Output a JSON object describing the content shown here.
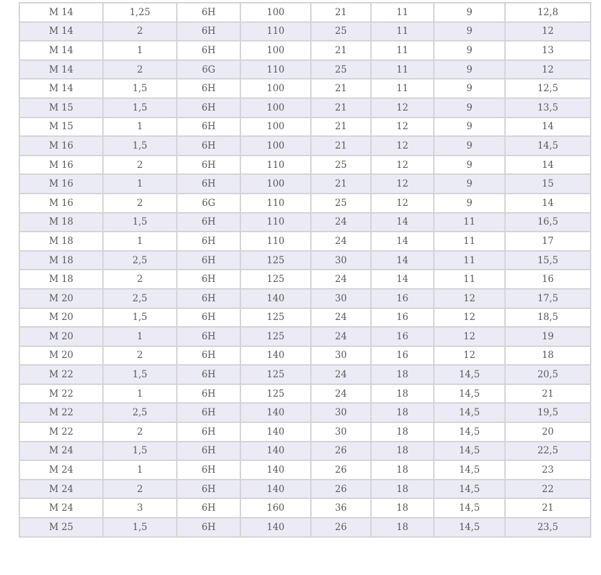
{
  "table": {
    "rows": [
      [
        "M 14",
        "1,25",
        "6H",
        "100",
        "21",
        "11",
        "9",
        "12,8"
      ],
      [
        "M 14",
        "2",
        "6H",
        "110",
        "25",
        "11",
        "9",
        "12"
      ],
      [
        "M 14",
        "1",
        "6H",
        "100",
        "21",
        "11",
        "9",
        "13"
      ],
      [
        "M 14",
        "2",
        "6G",
        "110",
        "25",
        "11",
        "9",
        "12"
      ],
      [
        "M 14",
        "1,5",
        "6H",
        "100",
        "21",
        "11",
        "9",
        "12,5"
      ],
      [
        "M 15",
        "1,5",
        "6H",
        "100",
        "21",
        "12",
        "9",
        "13,5"
      ],
      [
        "M 15",
        "1",
        "6H",
        "100",
        "21",
        "12",
        "9",
        "14"
      ],
      [
        "M 16",
        "1,5",
        "6H",
        "100",
        "21",
        "12",
        "9",
        "14,5"
      ],
      [
        "M 16",
        "2",
        "6H",
        "110",
        "25",
        "12",
        "9",
        "14"
      ],
      [
        "M 16",
        "1",
        "6H",
        "100",
        "21",
        "12",
        "9",
        "15"
      ],
      [
        "M 16",
        "2",
        "6G",
        "110",
        "25",
        "12",
        "9",
        "14"
      ],
      [
        "M 18",
        "1,5",
        "6H",
        "110",
        "24",
        "14",
        "11",
        "16,5"
      ],
      [
        "M 18",
        "1",
        "6H",
        "110",
        "24",
        "14",
        "11",
        "17"
      ],
      [
        "M 18",
        "2,5",
        "6H",
        "125",
        "30",
        "14",
        "11",
        "15,5"
      ],
      [
        "M 18",
        "2",
        "6H",
        "125",
        "24",
        "14",
        "11",
        "16"
      ],
      [
        "M 20",
        "2,5",
        "6H",
        "140",
        "30",
        "16",
        "12",
        "17,5"
      ],
      [
        "M 20",
        "1,5",
        "6H",
        "125",
        "24",
        "16",
        "12",
        "18,5"
      ],
      [
        "M 20",
        "1",
        "6H",
        "125",
        "24",
        "16",
        "12",
        "19"
      ],
      [
        "M 20",
        "2",
        "6H",
        "140",
        "30",
        "16",
        "12",
        "18"
      ],
      [
        "M 22",
        "1,5",
        "6H",
        "125",
        "24",
        "18",
        "14,5",
        "20,5"
      ],
      [
        "M 22",
        "1",
        "6H",
        "125",
        "24",
        "18",
        "14,5",
        "21"
      ],
      [
        "M 22",
        "2,5",
        "6H",
        "140",
        "30",
        "18",
        "14,5",
        "19,5"
      ],
      [
        "M 22",
        "2",
        "6H",
        "140",
        "30",
        "18",
        "14,5",
        "20"
      ],
      [
        "M 24",
        "1,5",
        "6H",
        "140",
        "26",
        "18",
        "14,5",
        "22,5"
      ],
      [
        "M 24",
        "1",
        "6H",
        "140",
        "26",
        "18",
        "14,5",
        "23"
      ],
      [
        "M 24",
        "2",
        "6H",
        "140",
        "26",
        "18",
        "14,5",
        "22"
      ],
      [
        "M 24",
        "3",
        "6H",
        "160",
        "36",
        "18",
        "14,5",
        "21"
      ],
      [
        "M 25",
        "1,5",
        "6H",
        "140",
        "26",
        "18",
        "14,5",
        "23,5"
      ]
    ]
  }
}
